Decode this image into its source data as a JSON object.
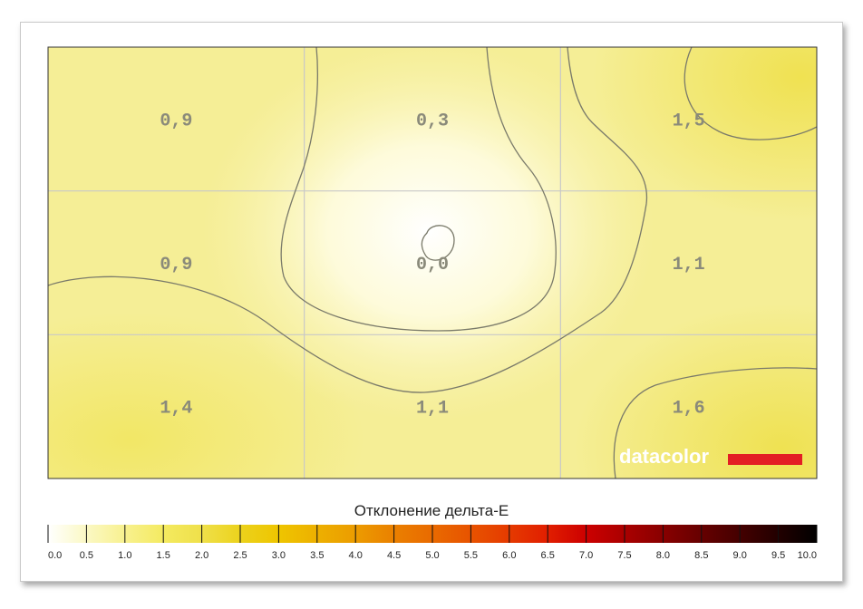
{
  "chart_data": {
    "type": "heatmap",
    "rows": 3,
    "cols": 3,
    "values": [
      [
        "0,9",
        "0,3",
        "1,5"
      ],
      [
        "0,9",
        "0,0",
        "1,1"
      ],
      [
        "1,4",
        "1,1",
        "1,6"
      ]
    ],
    "numeric_values": [
      [
        0.9,
        0.3,
        1.5
      ],
      [
        0.9,
        0.0,
        1.1
      ],
      [
        1.4,
        1.1,
        1.6
      ]
    ],
    "contour_levels": [
      0.1,
      1.0,
      1.5
    ],
    "grid": true,
    "color_scale": {
      "title": "Отклонение дельта-Е",
      "min": 0.0,
      "max": 10.0,
      "tick_labels": [
        "0.0",
        "0.5",
        "1.0",
        "1.5",
        "2.0",
        "2.5",
        "3.0",
        "3.5",
        "4.0",
        "4.5",
        "5.0",
        "5.5",
        "6.0",
        "6.5",
        "7.0",
        "7.5",
        "8.0",
        "8.5",
        "9.0",
        "9.5",
        "10.0"
      ],
      "colors": [
        "#ffffff",
        "#fbf8c4",
        "#f8f18f",
        "#f4ea60",
        "#efe04a",
        "#ecd21c",
        "#eec500",
        "#edb000",
        "#ec9c00",
        "#ea8000",
        "#e96a00",
        "#e85300",
        "#e53a00",
        "#e11e00",
        "#cc0000",
        "#aa0000",
        "#880000",
        "#660000",
        "#440000",
        "#220000",
        "#000000"
      ]
    },
    "brand": {
      "text": "datacolor",
      "bar_color": "#e31e24"
    }
  }
}
